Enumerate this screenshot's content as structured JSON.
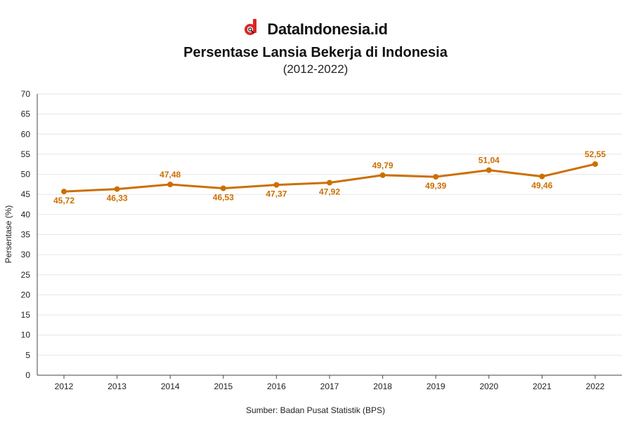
{
  "brand": {
    "name": "DataIndonesia.id",
    "logo_icon": "datainsight-d-magnifier-icon",
    "logo_color": "#e02424"
  },
  "colors": {
    "line": "#cc6f00",
    "grid": "#e6e6e6",
    "axis": "#444444"
  },
  "source": "Sumber: Badan Pusat Statistik (BPS)",
  "chart_data": {
    "type": "line",
    "title": "Persentase Lansia Bekerja di Indonesia",
    "subtitle": "(2012-2022)",
    "xlabel": "",
    "ylabel": "Persentase (%)",
    "ylim": [
      0,
      70
    ],
    "yticks": [
      0,
      5,
      10,
      15,
      20,
      25,
      30,
      35,
      40,
      45,
      50,
      55,
      60,
      65,
      70
    ],
    "grid": true,
    "legend": "none",
    "categories": [
      "2012",
      "2013",
      "2014",
      "2015",
      "2016",
      "2017",
      "2018",
      "2019",
      "2020",
      "2021",
      "2022"
    ],
    "values": [
      45.72,
      46.33,
      47.48,
      46.53,
      47.37,
      47.92,
      49.79,
      49.39,
      51.04,
      49.46,
      52.55
    ],
    "data_labels": [
      "45,72",
      "46,33",
      "47,48",
      "46,53",
      "47,37",
      "47,92",
      "49,79",
      "49,39",
      "51,04",
      "49,46",
      "52,55"
    ]
  }
}
